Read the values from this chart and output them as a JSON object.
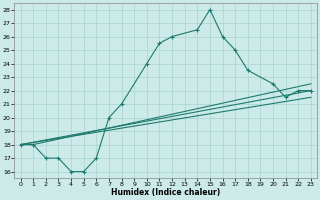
{
  "xlabel": "Humidex (Indice chaleur)",
  "bg_color": "#cceae7",
  "grid_color": "#aad4d0",
  "line_color": "#1e7a6e",
  "xlim": [
    -0.5,
    23.5
  ],
  "ylim": [
    15.5,
    28.5
  ],
  "xticks": [
    0,
    1,
    2,
    3,
    4,
    5,
    6,
    7,
    8,
    9,
    10,
    11,
    12,
    13,
    14,
    15,
    16,
    17,
    18,
    19,
    20,
    21,
    22,
    23
  ],
  "yticks": [
    16,
    17,
    18,
    19,
    20,
    21,
    22,
    23,
    24,
    25,
    26,
    27,
    28
  ],
  "main_line_x": [
    0,
    1,
    2,
    3,
    4,
    5,
    6,
    7,
    8,
    10,
    11,
    12,
    14,
    15,
    16,
    17,
    18,
    20,
    21,
    22,
    23
  ],
  "main_line_y": [
    18,
    18,
    17,
    17,
    16,
    16,
    17,
    20,
    21,
    24,
    25.5,
    26,
    26.5,
    28,
    26,
    25,
    23.5,
    22.5,
    21.5,
    22,
    22
  ],
  "straight_lines": [
    {
      "x": [
        0,
        23
      ],
      "y": [
        18,
        21.5
      ]
    },
    {
      "x": [
        0,
        23
      ],
      "y": [
        18,
        22
      ]
    },
    {
      "x": [
        0,
        1,
        23
      ],
      "y": [
        18,
        18,
        22.5
      ]
    }
  ]
}
